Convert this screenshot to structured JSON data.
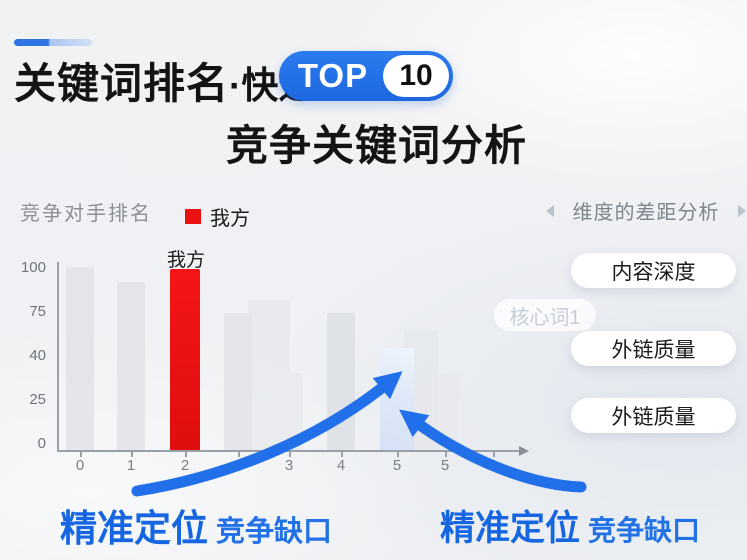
{
  "header": {
    "title_main": "关键词排名",
    "title_fast": "·快速",
    "badge_top": "TOP",
    "badge_number": "10",
    "subtitle": "竞争关键词分析"
  },
  "chart": {
    "title": "竞争对手排名",
    "legend_label": "我方",
    "our_bar_label": "我方"
  },
  "chart_data": {
    "type": "bar",
    "title": "竞争对手排名",
    "categories": [
      "0",
      "1",
      "2",
      "",
      "3",
      "4",
      "5",
      "5"
    ],
    "values": [
      100,
      92,
      99,
      75,
      42,
      75,
      56,
      42
    ],
    "bar_styles": [
      "gray",
      "gray",
      "red",
      "gray",
      "gray-faint",
      "gray-dark",
      "blue",
      "ghost"
    ],
    "highlight_red_index": 2,
    "highlight_blue_index": 6,
    "yticks": [
      "100",
      "75",
      "40",
      "25",
      "0"
    ],
    "ylim": [
      0,
      100
    ],
    "grid": false,
    "legend": [
      {
        "name": "我方",
        "color": "#ea1111"
      }
    ],
    "legend_position": "top",
    "annotated_bar_label": "我方"
  },
  "right_panel": {
    "title": "维度的差距分析",
    "tag": "核心词1",
    "pills": [
      "内容深度",
      "外链质量",
      "外链质量"
    ]
  },
  "annotations": {
    "left": {
      "bold": "精准定位",
      "rest": "竞争缺口"
    },
    "right": {
      "bold": "精准定位",
      "rest": "竞争缺口"
    }
  },
  "colors": {
    "accent_blue": "#2170e9",
    "badge_blue": "#2373e8",
    "red": "#ea1111",
    "highlight_bar_blue": "#dbe5f7",
    "text_dark": "#141414",
    "text_gray": "#8c9096",
    "axis_gray": "#9aa0a7"
  }
}
